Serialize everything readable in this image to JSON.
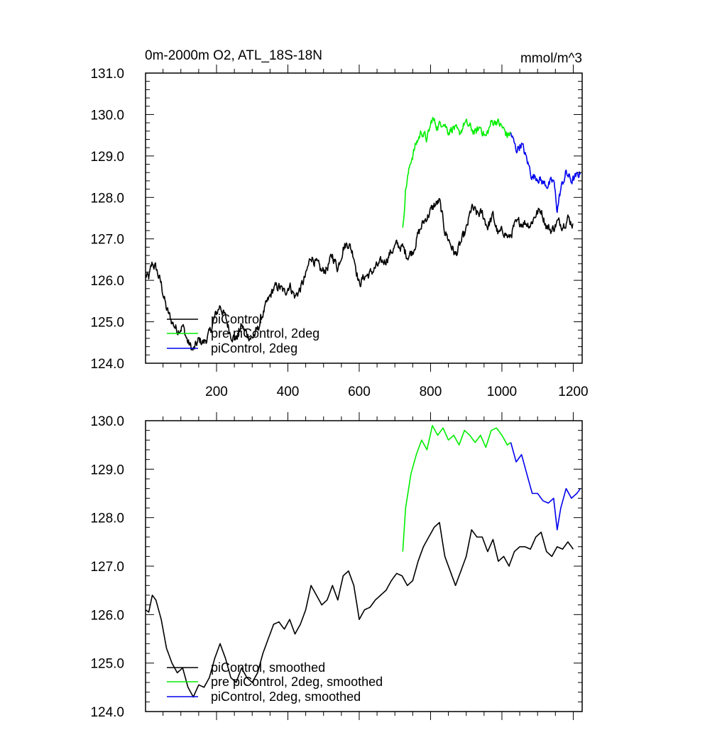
{
  "colors": {
    "piControl": "#000000",
    "pre": "#00ee00",
    "twodeg": "#0000ee"
  },
  "chart_data": [
    {
      "type": "line",
      "title": "0m-2000m O2, ATL_18S-18N",
      "units": "mmol/m^3",
      "xlim": [
        1,
        1225
      ],
      "ylim": [
        124.0,
        131.0
      ],
      "xticks": [
        200,
        400,
        600,
        800,
        1000,
        1200
      ],
      "xtick_labels": [
        "200",
        "400",
        "600",
        "800",
        "1000",
        "1200"
      ],
      "yticks": [
        124.0,
        125.0,
        126.0,
        127.0,
        128.0,
        129.0,
        130.0,
        131.0
      ],
      "ytick_labels": [
        "124.0",
        "125.0",
        "126.0",
        "127.0",
        "128.0",
        "129.0",
        "130.0",
        "131.0"
      ],
      "legend_position": "bottom-left",
      "series": [
        {
          "name": "piControl",
          "color": "#000000",
          "noise": 0.09,
          "x": [
            1,
            10,
            20,
            30,
            45,
            60,
            75,
            90,
            105,
            120,
            135,
            150,
            165,
            180,
            195,
            210,
            225,
            240,
            255,
            270,
            285,
            300,
            315,
            330,
            345,
            360,
            375,
            390,
            405,
            420,
            435,
            450,
            465,
            480,
            495,
            510,
            525,
            540,
            555,
            570,
            585,
            600,
            615,
            630,
            645,
            660,
            675,
            690,
            705,
            720,
            735,
            750,
            765,
            780,
            795,
            810,
            825,
            840,
            855,
            870,
            885,
            900,
            915,
            930,
            945,
            960,
            975,
            990,
            1005,
            1020,
            1035,
            1050,
            1065,
            1080,
            1095,
            1110,
            1125,
            1140,
            1155,
            1170,
            1185,
            1200
          ],
          "y": [
            126.1,
            126.05,
            126.4,
            126.3,
            125.9,
            125.3,
            125.0,
            124.8,
            124.9,
            124.5,
            124.3,
            124.55,
            124.5,
            124.7,
            125.1,
            125.4,
            125.1,
            124.7,
            124.6,
            124.9,
            124.7,
            124.6,
            124.8,
            125.2,
            125.5,
            125.8,
            125.85,
            125.7,
            125.9,
            125.6,
            125.8,
            126.1,
            126.6,
            126.4,
            126.2,
            126.3,
            126.6,
            126.3,
            126.8,
            126.9,
            126.6,
            125.9,
            126.1,
            126.15,
            126.3,
            126.4,
            126.5,
            126.7,
            126.85,
            126.8,
            126.6,
            126.7,
            127.1,
            127.4,
            127.6,
            127.8,
            127.9,
            127.2,
            126.9,
            126.6,
            126.9,
            127.2,
            127.75,
            127.6,
            127.6,
            127.3,
            127.55,
            127.1,
            127.2,
            127.0,
            127.3,
            127.4,
            127.4,
            127.35,
            127.6,
            127.7,
            127.3,
            127.2,
            127.4,
            127.35,
            127.5,
            127.35
          ]
        },
        {
          "name": "pre piControl, 2deg",
          "color": "#00ee00",
          "noise": 0.08,
          "x": [
            722,
            730,
            745,
            760,
            775,
            790,
            805,
            820,
            835,
            850,
            865,
            880,
            895,
            910,
            925,
            940,
            955,
            970,
            985,
            1000,
            1015,
            1025
          ],
          "y": [
            127.2,
            128.2,
            128.9,
            129.3,
            129.6,
            129.4,
            129.9,
            129.7,
            129.85,
            129.6,
            129.7,
            129.5,
            129.8,
            129.7,
            129.55,
            129.7,
            129.45,
            129.8,
            129.85,
            129.7,
            129.5,
            129.55
          ]
        },
        {
          "name": "piControl, 2deg",
          "color": "#0000ee",
          "noise": 0.08,
          "x": [
            1025,
            1040,
            1055,
            1070,
            1085,
            1100,
            1115,
            1130,
            1145,
            1155,
            1165,
            1180,
            1195,
            1210,
            1220
          ],
          "y": [
            129.55,
            129.15,
            129.3,
            128.9,
            128.5,
            128.5,
            128.35,
            128.3,
            128.4,
            127.7,
            128.2,
            128.6,
            128.4,
            128.5,
            128.6
          ]
        }
      ]
    },
    {
      "type": "line",
      "xlim": [
        1,
        1225
      ],
      "ylim": [
        124.0,
        130.0
      ],
      "yticks": [
        124.0,
        125.0,
        126.0,
        127.0,
        128.0,
        129.0,
        130.0
      ],
      "ytick_labels": [
        "124.0",
        "125.0",
        "126.0",
        "127.0",
        "128.0",
        "129.0",
        "130.0"
      ],
      "xticks": [
        200,
        400,
        600,
        800,
        1000,
        1200
      ],
      "legend_position": "bottom-left",
      "series": [
        {
          "name": "piControl, smoothed",
          "color": "#000000",
          "noise": 0,
          "x": [
            1,
            10,
            20,
            30,
            45,
            60,
            75,
            90,
            105,
            120,
            135,
            150,
            165,
            180,
            195,
            210,
            225,
            240,
            255,
            270,
            285,
            300,
            315,
            330,
            345,
            360,
            375,
            390,
            405,
            420,
            435,
            450,
            465,
            480,
            495,
            510,
            525,
            540,
            555,
            570,
            585,
            600,
            615,
            630,
            645,
            660,
            675,
            690,
            705,
            720,
            735,
            750,
            765,
            780,
            795,
            810,
            825,
            840,
            855,
            870,
            885,
            900,
            915,
            930,
            945,
            960,
            975,
            990,
            1005,
            1020,
            1035,
            1050,
            1065,
            1080,
            1095,
            1110,
            1125,
            1140,
            1155,
            1170,
            1185,
            1200
          ],
          "y": [
            126.1,
            126.05,
            126.4,
            126.3,
            125.9,
            125.3,
            125.0,
            124.8,
            124.9,
            124.5,
            124.3,
            124.55,
            124.5,
            124.7,
            125.1,
            125.4,
            125.1,
            124.7,
            124.6,
            124.9,
            124.7,
            124.6,
            124.8,
            125.2,
            125.5,
            125.8,
            125.85,
            125.7,
            125.9,
            125.6,
            125.8,
            126.1,
            126.6,
            126.4,
            126.2,
            126.3,
            126.6,
            126.3,
            126.8,
            126.9,
            126.6,
            125.9,
            126.1,
            126.15,
            126.3,
            126.4,
            126.5,
            126.7,
            126.85,
            126.8,
            126.6,
            126.7,
            127.1,
            127.4,
            127.6,
            127.8,
            127.9,
            127.2,
            126.9,
            126.6,
            126.9,
            127.2,
            127.75,
            127.6,
            127.6,
            127.3,
            127.55,
            127.1,
            127.2,
            127.0,
            127.3,
            127.4,
            127.4,
            127.35,
            127.6,
            127.7,
            127.3,
            127.2,
            127.4,
            127.35,
            127.5,
            127.35
          ]
        },
        {
          "name": "pre piControl, 2deg, smoothed",
          "color": "#00ee00",
          "noise": 0,
          "x": [
            722,
            730,
            745,
            760,
            775,
            790,
            805,
            820,
            835,
            850,
            865,
            880,
            895,
            910,
            925,
            940,
            955,
            970,
            985,
            1000,
            1015,
            1025
          ],
          "y": [
            127.3,
            128.2,
            128.9,
            129.3,
            129.6,
            129.4,
            129.9,
            129.7,
            129.85,
            129.6,
            129.7,
            129.5,
            129.8,
            129.7,
            129.55,
            129.7,
            129.45,
            129.8,
            129.85,
            129.7,
            129.5,
            129.55
          ]
        },
        {
          "name": "piControl, 2deg, smoothed",
          "color": "#0000ee",
          "noise": 0,
          "x": [
            1025,
            1040,
            1055,
            1070,
            1085,
            1100,
            1115,
            1130,
            1145,
            1155,
            1165,
            1180,
            1195,
            1210,
            1220
          ],
          "y": [
            129.55,
            129.15,
            129.3,
            128.9,
            128.5,
            128.5,
            128.35,
            128.3,
            128.4,
            127.75,
            128.2,
            128.6,
            128.4,
            128.5,
            128.6
          ]
        }
      ]
    }
  ]
}
